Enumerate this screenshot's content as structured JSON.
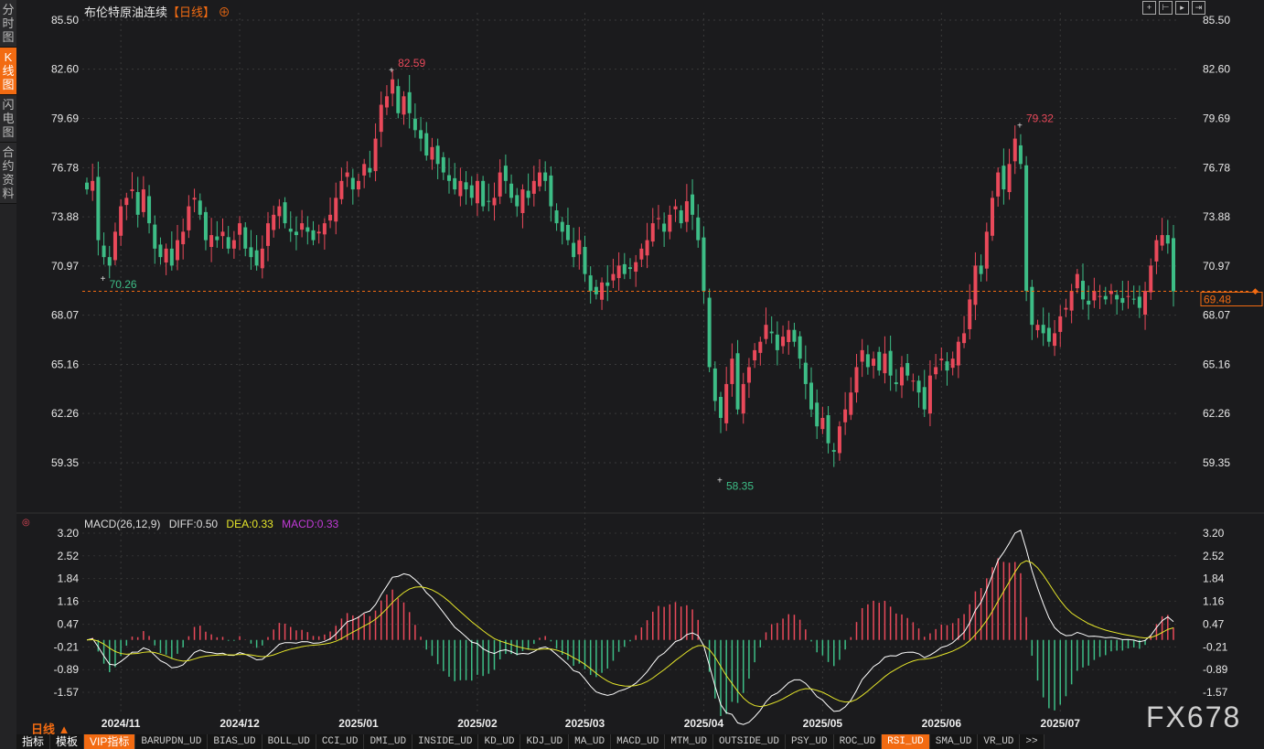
{
  "sidebar": {
    "items": [
      {
        "label": "分时图",
        "active": false
      },
      {
        "label": "K线图",
        "active": true
      },
      {
        "label": "闪电图",
        "active": false
      },
      {
        "label": "合约资料",
        "active": false
      }
    ]
  },
  "header": {
    "title": "布伦特原油连续",
    "period": "【日线】",
    "add_icon": "circle-plus-icon"
  },
  "toolbar": {
    "icons": [
      "crosshair-icon",
      "zoom-in-icon",
      "play-icon",
      "move-right-icon"
    ]
  },
  "colors": {
    "up": "#e9495a",
    "down": "#3dbd86",
    "diff": "#ffffff",
    "dea": "#e6e62a",
    "accent": "#f26b12",
    "macd_label": "#c23ad8"
  },
  "period_label": "日线 ▲",
  "watermark": "FX678",
  "bottom_tabs": [
    {
      "label": "指标",
      "zh": true
    },
    {
      "label": "模板",
      "zh": true
    },
    {
      "label": "VIP指标",
      "zh": true,
      "active": true
    },
    {
      "label": "BARUPDN_UD"
    },
    {
      "label": "BIAS_UD"
    },
    {
      "label": "BOLL_UD"
    },
    {
      "label": "CCI_UD"
    },
    {
      "label": "DMI_UD"
    },
    {
      "label": "INSIDE_UD"
    },
    {
      "label": "KD_UD"
    },
    {
      "label": "KDJ_UD"
    },
    {
      "label": "MA_UD"
    },
    {
      "label": "MACD_UD"
    },
    {
      "label": "MTM_UD"
    },
    {
      "label": "OUTSIDE_UD"
    },
    {
      "label": "PSY_UD"
    },
    {
      "label": "ROC_UD"
    },
    {
      "label": "RSI_UD",
      "active": true
    },
    {
      "label": "SMA_UD"
    },
    {
      "label": "VR_UD"
    },
    {
      "label": ">>"
    }
  ],
  "macd_legend": {
    "name": "MACD(26,12,9)",
    "diff": "DIFF:0.50",
    "dea": "DEA:0.33",
    "macd": "MACD:0.33"
  },
  "chart_data": [
    {
      "type": "candlestick",
      "title": "布伦特原油连续",
      "y_ticks": [
        "85.50",
        "82.60",
        "79.69",
        "76.78",
        "73.88",
        "70.97",
        "68.07",
        "65.16",
        "62.26",
        "59.35"
      ],
      "ylim": [
        59.35,
        85.5
      ],
      "grid": true,
      "x_ticks": [
        {
          "label": "2024/11",
          "index": 6
        },
        {
          "label": "2024/12",
          "index": 27
        },
        {
          "label": "2025/01",
          "index": 48
        },
        {
          "label": "2025/02",
          "index": 69
        },
        {
          "label": "2025/03",
          "index": 88
        },
        {
          "label": "2025/04",
          "index": 109
        },
        {
          "label": "2025/05",
          "index": 130
        },
        {
          "label": "2025/06",
          "index": 151
        },
        {
          "label": "2025/07",
          "index": 172
        }
      ],
      "closes": [
        75.5,
        76,
        72.5,
        71.5,
        71,
        73,
        74.5,
        75,
        75.5,
        74,
        75.5,
        73.5,
        72,
        71.5,
        72,
        71,
        72.5,
        73,
        74.5,
        75,
        74,
        72.5,
        72.8,
        72.5,
        73,
        72,
        72.5,
        73.5,
        72,
        71.5,
        71,
        72,
        73.5,
        74,
        74.5,
        73.5,
        73,
        72.8,
        73.5,
        73,
        72.5,
        73,
        73.5,
        74,
        75,
        76,
        76.5,
        75.5,
        76,
        77,
        76.5,
        78.5,
        80.5,
        81,
        82,
        80,
        81,
        80,
        79,
        78.5,
        77.5,
        78,
        77,
        76.5,
        76,
        75.5,
        76,
        75.5,
        75,
        76,
        74.5,
        74.8,
        75,
        76.5,
        76,
        75,
        74.5,
        75.5,
        75,
        76,
        76.5,
        76,
        74.5,
        73.5,
        73,
        72.5,
        71.5,
        72.5,
        70.5,
        69.5,
        69.3,
        70,
        69.8,
        70.5,
        71,
        70.5,
        70.8,
        71.2,
        72,
        72.5,
        73.5,
        73.8,
        73,
        74,
        74.5,
        73.5,
        74.8,
        74,
        72.5,
        69.5,
        65,
        63,
        62,
        64,
        65.5,
        62.5,
        64,
        65,
        66,
        66.5,
        67.5,
        67,
        66,
        66.8,
        67.2,
        66.5,
        65.5,
        64,
        62.5,
        61.5,
        62,
        60.5,
        60,
        61.5,
        62.5,
        63.5,
        65,
        66,
        65,
        65.5,
        64.8,
        65.8,
        64.5,
        64,
        65,
        64.5,
        64.2,
        63.5,
        62.5,
        64.5,
        65,
        65.5,
        64.8,
        65.5,
        66.5,
        67,
        69,
        71,
        70.5,
        73,
        75,
        76.5,
        75.5,
        77,
        78.5,
        77,
        69.5,
        67.5,
        67.5,
        67,
        66.5,
        67,
        68,
        68.5,
        69.5,
        70.5,
        69,
        68.7,
        69.5,
        69.2,
        69,
        69.5,
        69,
        68.8,
        69.2,
        69,
        68.5,
        69.5,
        71,
        72.5,
        72.8,
        72.3,
        69.48
      ],
      "annotations": [
        {
          "label": "82.59",
          "type": "high",
          "index": 54,
          "value": 82.59
        },
        {
          "label": "79.32",
          "type": "high",
          "index": 165,
          "value": 79.32
        },
        {
          "label": "70.26",
          "type": "low",
          "index": 3,
          "value": 70.26
        },
        {
          "label": "58.35",
          "type": "low",
          "index": 112,
          "value": 58.35
        }
      ],
      "last_price": "69.48"
    },
    {
      "type": "macd",
      "y_ticks": [
        "3.20",
        "2.52",
        "1.84",
        "1.16",
        "0.47",
        "-0.21",
        "-0.89",
        "-1.57"
      ],
      "ylim": [
        -1.57,
        3.2
      ],
      "params": [
        26,
        12,
        9
      ]
    }
  ]
}
